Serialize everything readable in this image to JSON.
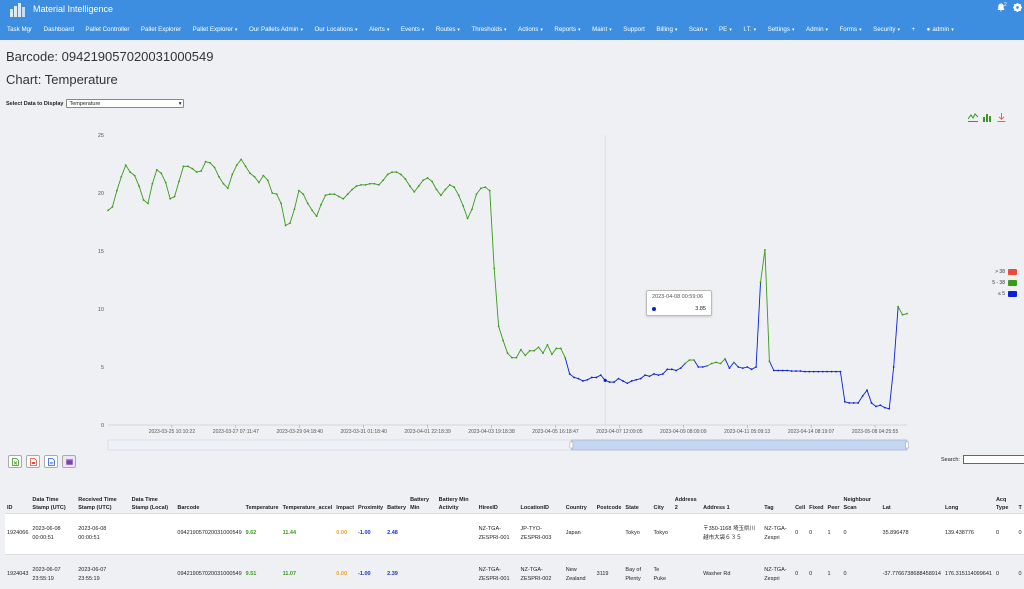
{
  "app": {
    "brand": "Material Intelligence",
    "notification_count": "2"
  },
  "nav": [
    {
      "label": "Task Mgr",
      "caret": false
    },
    {
      "label": "Dashboard",
      "caret": false
    },
    {
      "label": "Pallet Controller",
      "caret": false
    },
    {
      "label": "Pallet Explorer",
      "caret": false
    },
    {
      "label": "Pallet Explorer",
      "caret": true
    },
    {
      "label": "Our Pallets Admin",
      "caret": true
    },
    {
      "label": "Our Locations",
      "caret": true
    },
    {
      "label": "Alerts",
      "caret": true
    },
    {
      "label": "Events",
      "caret": true
    },
    {
      "label": "Routes",
      "caret": true
    },
    {
      "label": "Thresholds",
      "caret": true
    },
    {
      "label": "Actions",
      "caret": true
    },
    {
      "label": "Reports",
      "caret": true
    },
    {
      "label": "Maint",
      "caret": true
    },
    {
      "label": "Support",
      "caret": false
    },
    {
      "label": "Billing",
      "caret": true
    },
    {
      "label": "Scan",
      "caret": true
    },
    {
      "label": "PE",
      "caret": true
    },
    {
      "label": "I.T.",
      "caret": true
    },
    {
      "label": "Settings",
      "caret": true
    },
    {
      "label": "Admin",
      "caret": true
    },
    {
      "label": "Forms",
      "caret": true
    },
    {
      "label": "Security",
      "caret": true
    },
    {
      "label": "+",
      "caret": false
    },
    {
      "label": "admin",
      "caret": true
    }
  ],
  "page": {
    "barcode_title": "Barcode: 094219057020031000549",
    "chart_title": "Chart: Temperature",
    "select_label": "Select Data to Display",
    "select_value": "Temperature"
  },
  "icons": {
    "logo": "pallet-logo-icon",
    "bell": "bell-icon",
    "gear": "gear-icon",
    "user": "user-circle-icon",
    "line_chart": "line-chart-icon",
    "bar_chart": "bar-chart-icon",
    "download": "download-icon",
    "excel": "excel-icon",
    "pdf": "pdf-icon",
    "doc": "document-icon",
    "calendar": "calendar-icon"
  },
  "colors": {
    "nav": "#3d8ee0",
    "green": "#3a9a1a",
    "red": "#e74c3c",
    "blue": "#0b1fd8"
  },
  "chart_data": {
    "type": "line",
    "y_ticks": [
      "25",
      "20",
      "15",
      "10",
      "5",
      "0"
    ],
    "ylim": [
      0,
      25
    ],
    "x_tick_labels": [
      "2023-03-25 10:10:22",
      "2023-03-27 07:11:47",
      "2023-03-29 04:18:40",
      "2023-03-31 01:18:40",
      "2023-04-01 22:18:39",
      "2023-04-03 19:18:38",
      "2023-04-05 16:18:47",
      "2023-04-07 12:09:05",
      "2023-04-09 08:09:09",
      "2023-04-11 05:09:13",
      "2023-04-14 08:19:07",
      "2023-05-08 04:25:55"
    ],
    "legend": [
      {
        "label": "> 38",
        "color": "#e74c3c"
      },
      {
        "label": "5 - 38",
        "color": "#3a9a1a"
      },
      {
        "label": "≤ 5",
        "color": "#0b1fd8"
      }
    ],
    "series": [
      {
        "values": [
          18.5,
          18.8,
          20.2,
          21.4,
          22.4,
          21.8,
          21.5,
          20.6,
          19.4,
          19.1,
          20.8,
          22.0,
          21.7,
          20.9,
          19.5,
          19.7,
          21.0,
          22.3,
          22.3,
          22.1,
          21.8,
          21.9,
          22.7,
          22.6,
          22.2,
          21.4,
          20.8,
          20.4,
          21.6,
          22.4,
          22.9,
          22.3,
          21.7,
          21.4,
          20.9,
          21.5,
          21.1,
          20.0,
          19.9,
          19.1,
          17.2,
          17.4,
          18.6,
          20.2,
          19.9,
          19.1,
          18.5,
          18.0,
          19.0,
          19.8,
          19.9,
          19.9,
          19.7,
          19.5,
          19.9,
          20.3,
          20.6,
          20.7,
          20.7,
          20.8,
          20.8,
          20.7,
          21.1,
          21.6,
          21.8,
          21.8,
          21.6,
          21.2,
          20.6,
          20.1,
          20.6,
          21.1,
          21.3,
          21.0,
          20.3,
          19.8,
          20.3,
          20.7,
          20.5,
          19.8,
          18.9,
          17.8,
          18.6,
          19.9,
          20.4,
          20.5,
          20.2,
          13.5,
          8.5,
          7.3,
          6.2,
          5.8,
          5.8,
          6.5,
          6.0,
          6.4,
          6.4,
          6.7,
          6.2,
          6.9,
          6.1,
          6.6,
          6.6,
          5.8,
          4.4,
          4.1,
          4.0,
          3.8,
          3.9,
          4.1,
          4.1,
          4.3,
          3.85,
          3.7,
          3.7,
          4.0,
          3.8,
          3.6,
          3.8,
          3.9,
          4.0,
          4.3,
          4.2,
          4.4,
          4.3,
          4.4,
          4.8,
          4.8,
          4.7,
          4.9,
          5.3,
          5.6,
          5.6,
          5.0,
          5.0,
          5.1,
          5.3,
          5.4,
          5.3,
          5.7,
          4.9,
          5.4,
          5.0,
          4.9,
          5.0,
          4.8,
          5.0,
          12.3,
          15.1,
          5.5,
          4.7,
          4.7,
          4.7,
          4.7,
          4.65,
          4.65,
          4.65,
          4.6,
          4.6,
          4.6,
          4.6,
          4.6,
          4.6,
          4.6,
          4.6,
          4.6,
          2.0,
          1.9,
          1.9,
          1.9,
          2.5,
          3.0,
          1.9,
          1.6,
          1.7,
          1.5,
          1.4,
          5.0,
          10.2,
          9.5,
          9.6
        ]
      }
    ],
    "tooltip": {
      "date": "2023-04-08 00:59:06",
      "value": "3.85"
    }
  },
  "table": {
    "search_label": "Search:",
    "columns": [
      "ID",
      "Data Time Stamp (UTC)",
      "Received Time Stamp (UTC)",
      "Data Time Stamp (Local)",
      "Barcode",
      "Temperature",
      "Temperature_accel",
      "Impact",
      "Proximity",
      "Battery",
      "Battery Min",
      "Battery Min Activity",
      "HireeID",
      "LocationID",
      "Country",
      "Postcode",
      "State",
      "City",
      "Address 2",
      "Address 1",
      "Tag",
      "Cell",
      "Fixed",
      "Peer",
      "Neighbour Scan",
      "Lat",
      "Long",
      "Acq Type",
      "T"
    ],
    "rows": [
      [
        "1924066",
        "2023-06-08 00:00:51",
        "2023-06-08 00:00:51",
        "",
        "094219057020031000549",
        "9.62",
        "11.44",
        "0.00",
        "-1.00",
        "2.48",
        "",
        "",
        "NZ-TGA-ZESPRI-001",
        "JP-TYO-ZESPRI-003",
        "Japan",
        "",
        "Tokyo",
        "Tokyo",
        "",
        "〒350-1168 埼玉県川越市大袋６３５",
        "NZ-TGA-Zespri",
        "0",
        "0",
        "1",
        "0",
        "35.896478",
        "139.438776",
        "0",
        "0"
      ],
      [
        "1924043",
        "2023-06-07 23:55:19",
        "2023-06-07 23:55:19",
        "",
        "094219057020031000549",
        "9.51",
        "11.07",
        "0.00",
        "-1.00",
        "2.39",
        "",
        "",
        "NZ-TGA-ZESPRI-001",
        "NZ-TGA-ZESPRI-002",
        "New Zealand",
        "3119",
        "Bay of Plenty",
        "Te Puke",
        "",
        "Washer Rd",
        "NZ-TGA-Zespri",
        "0",
        "0",
        "1",
        "0",
        "-37.7766738688458914",
        "176.315114099641",
        "0",
        "0"
      ]
    ]
  }
}
